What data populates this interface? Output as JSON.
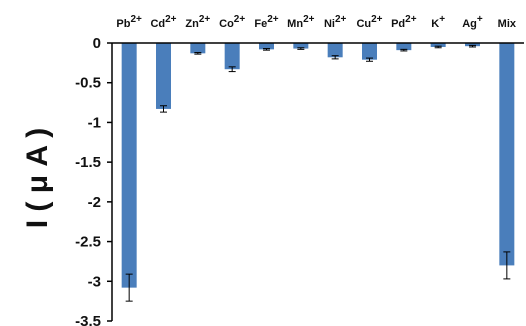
{
  "chart_data": {
    "type": "bar",
    "ylabel": "I ( μ A )",
    "categories": [
      {
        "base": "Pb",
        "sup": "2+"
      },
      {
        "base": "Cd",
        "sup": "2+"
      },
      {
        "base": "Zn",
        "sup": "2+"
      },
      {
        "base": "Co",
        "sup": "2+"
      },
      {
        "base": "Fe",
        "sup": "2+"
      },
      {
        "base": "Mn",
        "sup": "2+"
      },
      {
        "base": "Ni",
        "sup": "2+"
      },
      {
        "base": "Cu",
        "sup": "2+"
      },
      {
        "base": "Pd",
        "sup": "2+"
      },
      {
        "base": "K",
        "sup": "+"
      },
      {
        "base": "Ag",
        "sup": "+"
      },
      {
        "base": "Mix",
        "sup": ""
      }
    ],
    "values": [
      -3.08,
      -0.83,
      -0.13,
      -0.33,
      -0.08,
      -0.07,
      -0.18,
      -0.21,
      -0.09,
      -0.05,
      -0.04,
      -2.8
    ],
    "errors": [
      0.17,
      0.04,
      0.01,
      0.03,
      0.01,
      0.01,
      0.02,
      0.02,
      0.01,
      0.01,
      0.01,
      0.17
    ],
    "ylim": [
      -3.5,
      0
    ],
    "yticks": [
      "0",
      "-0.5",
      "-1",
      "-1.5",
      "-2",
      "-2.5",
      "-3",
      "-3.5"
    ],
    "bar_color": "#4a7ebb",
    "grid": false
  }
}
